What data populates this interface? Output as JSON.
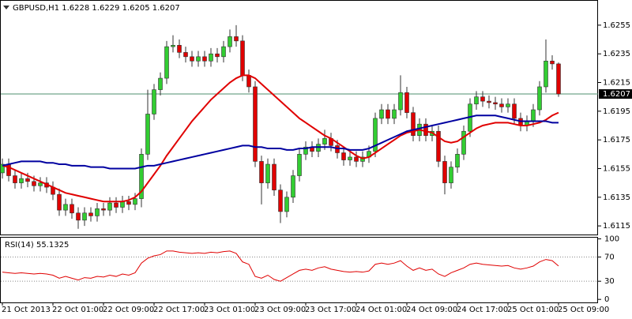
{
  "chart_data": [
    {
      "type": "candlestick",
      "title": "GBPUSD,H1  1.6228 1.6229 1.6205 1.6207",
      "ylim": [
        1.6109,
        1.6272
      ],
      "yticks": [
        1.6255,
        1.6235,
        1.6215,
        1.6195,
        1.6175,
        1.6155,
        1.6135,
        1.6115
      ],
      "xlim": [
        0,
        88
      ],
      "xticks": [
        {
          "value": 0,
          "label": "21 Oct 2013"
        },
        {
          "value": 8,
          "label": "22 Oct 01:00"
        },
        {
          "value": 16,
          "label": "22 Oct 09:00"
        },
        {
          "value": 24,
          "label": "22 Oct 17:00"
        },
        {
          "value": 32,
          "label": "23 Oct 01:00"
        },
        {
          "value": 40,
          "label": "23 Oct 09:00"
        },
        {
          "value": 48,
          "label": "23 Oct 17:00"
        },
        {
          "value": 56,
          "label": "24 Oct 01:00"
        },
        {
          "value": 64,
          "label": "24 Oct 09:00"
        },
        {
          "value": 72,
          "label": "24 Oct 17:00"
        },
        {
          "value": 80,
          "label": "25 Oct 01:00"
        },
        {
          "value": 88,
          "label": "25 Oct 09:00"
        }
      ],
      "up_color": "#32cd32",
      "down_color": "#e00000",
      "last_price": 1.6207,
      "last_price_color": "#4f8f6f",
      "open": [
        1.6152,
        1.6158,
        1.615,
        1.6145,
        1.6148,
        1.6146,
        1.6143,
        1.6145,
        1.6142,
        1.6137,
        1.6126,
        1.613,
        1.6124,
        1.6119,
        1.6124,
        1.6122,
        1.6127,
        1.6126,
        1.6131,
        1.6128,
        1.6132,
        1.613,
        1.6134,
        1.6165,
        1.6193,
        1.621,
        1.6218,
        1.624,
        1.6241,
        1.6236,
        1.6233,
        1.623,
        1.6233,
        1.623,
        1.6235,
        1.6233,
        1.624,
        1.6247,
        1.6244,
        1.622,
        1.6212,
        1.616,
        1.6145,
        1.6158,
        1.614,
        1.6125,
        1.6135,
        1.615,
        1.6165,
        1.617,
        1.6167,
        1.6172,
        1.6176,
        1.6171,
        1.6166,
        1.6161,
        1.6163,
        1.616,
        1.6163,
        1.6167,
        1.619,
        1.6196,
        1.619,
        1.6196,
        1.6208,
        1.6194,
        1.6178,
        1.6186,
        1.6178,
        1.6181,
        1.616,
        1.6145,
        1.6156,
        1.6165,
        1.6181,
        1.62,
        1.6205,
        1.6202,
        1.6201,
        1.62,
        1.6198,
        1.62,
        1.619,
        1.6185,
        1.6188,
        1.6196,
        1.6212,
        1.623,
        1.6228
      ],
      "high": [
        1.6162,
        1.6162,
        1.6154,
        1.6152,
        1.6152,
        1.615,
        1.6149,
        1.6149,
        1.6146,
        1.6141,
        1.6134,
        1.6134,
        1.6128,
        1.6128,
        1.6128,
        1.6131,
        1.6131,
        1.6135,
        1.6135,
        1.6136,
        1.6136,
        1.6138,
        1.6169,
        1.621,
        1.6214,
        1.6222,
        1.6244,
        1.6248,
        1.6245,
        1.624,
        1.6237,
        1.6237,
        1.6237,
        1.6239,
        1.6239,
        1.6244,
        1.6252,
        1.6255,
        1.6248,
        1.6224,
        1.6216,
        1.6164,
        1.6162,
        1.6162,
        1.6144,
        1.6139,
        1.6154,
        1.6169,
        1.6174,
        1.6174,
        1.6176,
        1.6182,
        1.618,
        1.6175,
        1.617,
        1.6167,
        1.6167,
        1.6167,
        1.6171,
        1.6194,
        1.62,
        1.62,
        1.62,
        1.622,
        1.6212,
        1.6198,
        1.619,
        1.619,
        1.6185,
        1.6185,
        1.6164,
        1.616,
        1.6169,
        1.6185,
        1.6204,
        1.6209,
        1.6209,
        1.6206,
        1.6205,
        1.6204,
        1.6204,
        1.6204,
        1.6194,
        1.6192,
        1.62,
        1.6216,
        1.6245,
        1.6234,
        1.6229
      ],
      "low": [
        1.6148,
        1.6146,
        1.6141,
        1.6141,
        1.6142,
        1.6139,
        1.6139,
        1.6138,
        1.6133,
        1.6122,
        1.6122,
        1.612,
        1.6113,
        1.6115,
        1.6118,
        1.6118,
        1.6122,
        1.6122,
        1.6124,
        1.6124,
        1.6126,
        1.6126,
        1.6128,
        1.6161,
        1.6189,
        1.6206,
        1.6214,
        1.6236,
        1.6232,
        1.6229,
        1.6226,
        1.6226,
        1.6226,
        1.6226,
        1.6229,
        1.6229,
        1.6236,
        1.624,
        1.6216,
        1.6208,
        1.6156,
        1.613,
        1.6141,
        1.6136,
        1.6117,
        1.6121,
        1.6131,
        1.6146,
        1.6161,
        1.6163,
        1.6163,
        1.6168,
        1.6167,
        1.6162,
        1.6157,
        1.6157,
        1.6156,
        1.6156,
        1.6159,
        1.6163,
        1.6186,
        1.6186,
        1.6186,
        1.6192,
        1.619,
        1.6174,
        1.6174,
        1.6174,
        1.6174,
        1.6156,
        1.6137,
        1.6141,
        1.6152,
        1.6161,
        1.6177,
        1.6196,
        1.6198,
        1.6197,
        1.6196,
        1.6194,
        1.6194,
        1.6186,
        1.6181,
        1.6181,
        1.6184,
        1.6192,
        1.6208,
        1.6224,
        1.6205
      ],
      "close": [
        1.6158,
        1.615,
        1.6145,
        1.6148,
        1.6146,
        1.6143,
        1.6145,
        1.6142,
        1.6137,
        1.6126,
        1.613,
        1.6124,
        1.6119,
        1.6124,
        1.6122,
        1.6127,
        1.6126,
        1.6131,
        1.6128,
        1.6132,
        1.613,
        1.6134,
        1.6165,
        1.6193,
        1.621,
        1.6218,
        1.624,
        1.6241,
        1.6236,
        1.6233,
        1.623,
        1.6233,
        1.623,
        1.6235,
        1.6233,
        1.624,
        1.6247,
        1.6244,
        1.622,
        1.6212,
        1.616,
        1.6145,
        1.6158,
        1.614,
        1.6125,
        1.6135,
        1.615,
        1.6165,
        1.617,
        1.6167,
        1.6172,
        1.6176,
        1.6171,
        1.6166,
        1.6161,
        1.6163,
        1.616,
        1.6163,
        1.6167,
        1.619,
        1.6196,
        1.619,
        1.6196,
        1.6208,
        1.6194,
        1.6178,
        1.6186,
        1.6178,
        1.6181,
        1.616,
        1.6145,
        1.6156,
        1.6165,
        1.6181,
        1.62,
        1.6205,
        1.6202,
        1.6201,
        1.62,
        1.6198,
        1.62,
        1.619,
        1.6185,
        1.6188,
        1.6196,
        1.6212,
        1.623,
        1.6228,
        1.6207
      ],
      "series": [
        {
          "color": "#e00000",
          "values": [
            1.6157,
            1.6156,
            1.6154,
            1.6152,
            1.615,
            1.6148,
            1.6146,
            1.6144,
            1.6142,
            1.614,
            1.6138,
            1.6137,
            1.6136,
            1.6135,
            1.6134,
            1.6133,
            1.6132,
            1.6132,
            1.6132,
            1.6132,
            1.6133,
            1.6135,
            1.6139,
            1.6145,
            1.6151,
            1.6157,
            1.6164,
            1.617,
            1.6176,
            1.6182,
            1.6188,
            1.6193,
            1.6198,
            1.6203,
            1.6207,
            1.6211,
            1.6215,
            1.6218,
            1.622,
            1.622,
            1.6218,
            1.6214,
            1.621,
            1.6206,
            1.6202,
            1.6198,
            1.6194,
            1.619,
            1.6187,
            1.6184,
            1.6181,
            1.6178,
            1.6176,
            1.6173,
            1.617,
            1.6167,
            1.6164,
            1.6162,
            1.6163,
            1.6166,
            1.6169,
            1.6172,
            1.6175,
            1.6178,
            1.618,
            1.6181,
            1.6182,
            1.6181,
            1.618,
            1.6177,
            1.6174,
            1.6173,
            1.6174,
            1.6177,
            1.618,
            1.6183,
            1.6185,
            1.6186,
            1.6187,
            1.6187,
            1.6187,
            1.6186,
            1.6185,
            1.6185,
            1.6186,
            1.6187,
            1.6189,
            1.6192,
            1.6194
          ]
        },
        {
          "color": "#0000a0",
          "values": [
            1.6157,
            1.6158,
            1.6159,
            1.616,
            1.616,
            1.616,
            1.616,
            1.6159,
            1.6159,
            1.6158,
            1.6158,
            1.6157,
            1.6157,
            1.6157,
            1.6156,
            1.6156,
            1.6156,
            1.6155,
            1.6155,
            1.6155,
            1.6155,
            1.6155,
            1.6156,
            1.6157,
            1.6157,
            1.6158,
            1.6159,
            1.616,
            1.6161,
            1.6162,
            1.6163,
            1.6164,
            1.6165,
            1.6166,
            1.6167,
            1.6168,
            1.6169,
            1.617,
            1.6171,
            1.6171,
            1.617,
            1.617,
            1.6169,
            1.6169,
            1.6169,
            1.6168,
            1.6168,
            1.6169,
            1.6169,
            1.617,
            1.617,
            1.617,
            1.617,
            1.6169,
            1.6169,
            1.6168,
            1.6168,
            1.6168,
            1.6169,
            1.6171,
            1.6173,
            1.6175,
            1.6177,
            1.6179,
            1.6181,
            1.6182,
            1.6183,
            1.6184,
            1.6185,
            1.6186,
            1.6187,
            1.6188,
            1.6189,
            1.619,
            1.6191,
            1.6192,
            1.6192,
            1.6192,
            1.6192,
            1.6191,
            1.619,
            1.6189,
            1.6188,
            1.6188,
            1.6188,
            1.6188,
            1.6188,
            1.6187,
            1.6187
          ]
        }
      ]
    },
    {
      "type": "line",
      "title": "RSI(14) 55.1325",
      "ylim": [
        -5,
        102
      ],
      "yticks": [
        100,
        70,
        30,
        0
      ],
      "levels": [
        70,
        30
      ],
      "series": [
        {
          "color": "#e00000",
          "values": [
            45,
            44,
            43,
            44,
            43,
            42,
            43,
            42,
            40,
            35,
            38,
            35,
            32,
            36,
            35,
            38,
            37,
            40,
            38,
            42,
            40,
            44,
            60,
            68,
            72,
            74,
            80,
            80,
            78,
            77,
            76,
            77,
            76,
            78,
            77,
            79,
            80,
            76,
            62,
            58,
            38,
            35,
            40,
            33,
            30,
            36,
            42,
            48,
            50,
            48,
            52,
            54,
            50,
            48,
            46,
            45,
            46,
            45,
            47,
            58,
            60,
            58,
            60,
            64,
            55,
            48,
            52,
            48,
            50,
            42,
            38,
            44,
            48,
            52,
            58,
            60,
            58,
            57,
            56,
            55,
            56,
            52,
            50,
            52,
            55,
            62,
            66,
            64,
            55.1325
          ]
        }
      ]
    }
  ]
}
